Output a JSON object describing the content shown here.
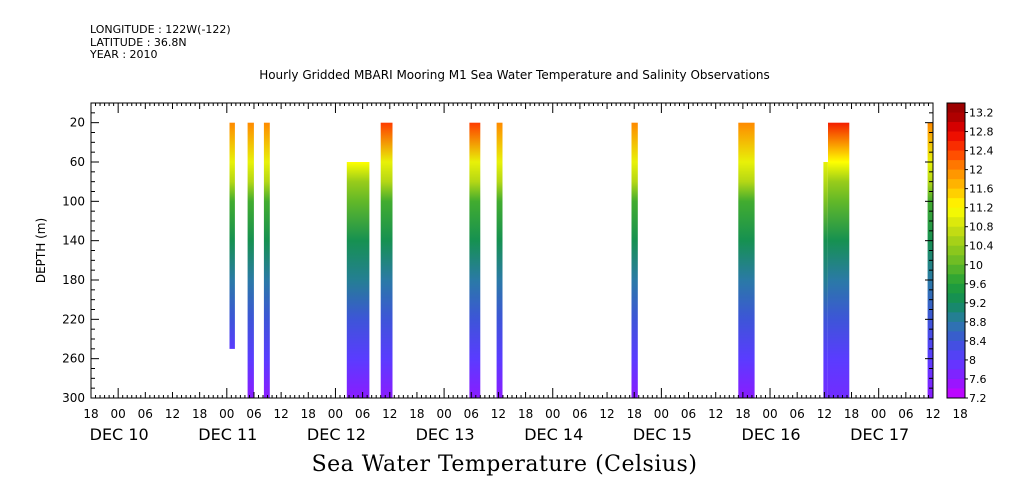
{
  "header": {
    "longitude": "LONGITUDE : 122W(-122)",
    "latitude": "LATITUDE : 36.8N",
    "year": "YEAR : 2010",
    "title": "Hourly Gridded MBARI Mooring M1 Sea Water Temperature and Salinity Observations"
  },
  "variable_title": "Sea Water Temperature (Celsius)",
  "chart_data": {
    "type": "heatmap",
    "title": "Hourly Gridded MBARI Mooring M1 Sea Water Temperature and Salinity Observations",
    "xlabel": "",
    "ylabel": "DEPTH (m)",
    "x_range_hours_from_dec10_00": [
      -6,
      180
    ],
    "y_range_depth_m": [
      0,
      300
    ],
    "y_reversed": true,
    "y_ticks": [
      20,
      60,
      100,
      140,
      180,
      220,
      260,
      300
    ],
    "x_hour_ticks": [
      "18",
      "00",
      "06",
      "12",
      "18",
      "00",
      "06",
      "12",
      "18",
      "00",
      "06",
      "12",
      "18",
      "00",
      "06",
      "12",
      "18",
      "00",
      "06",
      "12",
      "18",
      "00",
      "06",
      "12",
      "18",
      "00",
      "06",
      "12",
      "18",
      "00",
      "06",
      "12",
      "18"
    ],
    "x_date_labels": [
      "DEC 10",
      "DEC 11",
      "DEC 12",
      "DEC 13",
      "DEC 14",
      "DEC 15",
      "DEC 16",
      "DEC 17"
    ],
    "colorbar_levels": [
      "13.2",
      "12.8",
      "12.4",
      "12",
      "11.6",
      "11.2",
      "10.8",
      "10.4",
      "10",
      "9.6",
      "9.2",
      "8.8",
      "8.4",
      "8",
      "7.6",
      "7.2"
    ],
    "colorbar_range": [
      7.2,
      13.4
    ],
    "profiles": [
      {
        "time_start_h": 24.6,
        "time_end_h": 25.8,
        "depth_top": 20,
        "depth_bottom": 250,
        "temps": [
          [
            20,
            12.0
          ],
          [
            60,
            11.0
          ],
          [
            80,
            10.6
          ],
          [
            100,
            9.8
          ],
          [
            140,
            9.3
          ],
          [
            180,
            8.8
          ],
          [
            220,
            8.4
          ],
          [
            250,
            8.0
          ]
        ]
      },
      {
        "time_start_h": 28.6,
        "time_end_h": 30.0,
        "depth_top": 20,
        "depth_bottom": 300,
        "temps": [
          [
            20,
            12.0
          ],
          [
            60,
            11.0
          ],
          [
            80,
            10.6
          ],
          [
            100,
            9.8
          ],
          [
            140,
            9.3
          ],
          [
            180,
            8.8
          ],
          [
            220,
            8.4
          ],
          [
            260,
            8.0
          ],
          [
            300,
            7.6
          ]
        ]
      },
      {
        "time_start_h": 32.2,
        "time_end_h": 33.5,
        "depth_top": 20,
        "depth_bottom": 300,
        "temps": [
          [
            20,
            12.0
          ],
          [
            60,
            11.0
          ],
          [
            80,
            10.6
          ],
          [
            100,
            9.8
          ],
          [
            140,
            9.3
          ],
          [
            180,
            8.8
          ],
          [
            220,
            8.4
          ],
          [
            260,
            8.0
          ],
          [
            300,
            7.6
          ]
        ]
      },
      {
        "time_start_h": 50.5,
        "time_end_h": 55.5,
        "depth_top": 60,
        "depth_bottom": 300,
        "temps": [
          [
            60,
            11.2
          ],
          [
            80,
            10.4
          ],
          [
            100,
            10.0
          ],
          [
            140,
            9.3
          ],
          [
            180,
            8.9
          ],
          [
            220,
            8.4
          ],
          [
            260,
            8.0
          ],
          [
            300,
            7.6
          ]
        ]
      },
      {
        "time_start_h": 58.0,
        "time_end_h": 60.6,
        "depth_top": 20,
        "depth_bottom": 300,
        "temps": [
          [
            20,
            12.4
          ],
          [
            60,
            11.0
          ],
          [
            80,
            10.6
          ],
          [
            100,
            9.8
          ],
          [
            140,
            9.3
          ],
          [
            180,
            8.8
          ],
          [
            220,
            8.4
          ],
          [
            260,
            8.0
          ],
          [
            300,
            7.6
          ]
        ]
      },
      {
        "time_start_h": 77.6,
        "time_end_h": 80.0,
        "depth_top": 20,
        "depth_bottom": 300,
        "temps": [
          [
            20,
            12.4
          ],
          [
            60,
            11.0
          ],
          [
            80,
            10.6
          ],
          [
            100,
            9.8
          ],
          [
            140,
            9.3
          ],
          [
            180,
            8.8
          ],
          [
            220,
            8.4
          ],
          [
            260,
            8.0
          ],
          [
            300,
            7.6
          ]
        ]
      },
      {
        "time_start_h": 83.6,
        "time_end_h": 84.9,
        "depth_top": 20,
        "depth_bottom": 300,
        "temps": [
          [
            20,
            12.0
          ],
          [
            60,
            11.0
          ],
          [
            80,
            10.6
          ],
          [
            100,
            9.8
          ],
          [
            140,
            9.3
          ],
          [
            180,
            8.8
          ],
          [
            220,
            8.4
          ],
          [
            260,
            8.0
          ],
          [
            300,
            7.6
          ]
        ]
      },
      {
        "time_start_h": 113.4,
        "time_end_h": 114.8,
        "depth_top": 20,
        "depth_bottom": 300,
        "temps": [
          [
            20,
            12.0
          ],
          [
            60,
            11.0
          ],
          [
            80,
            10.6
          ],
          [
            100,
            9.8
          ],
          [
            140,
            9.3
          ],
          [
            180,
            8.8
          ],
          [
            220,
            8.4
          ],
          [
            260,
            8.0
          ],
          [
            300,
            7.6
          ]
        ]
      },
      {
        "time_start_h": 137.0,
        "time_end_h": 140.6,
        "depth_top": 20,
        "depth_bottom": 300,
        "temps": [
          [
            20,
            12.0
          ],
          [
            60,
            11.0
          ],
          [
            80,
            10.6
          ],
          [
            100,
            9.8
          ],
          [
            140,
            9.3
          ],
          [
            180,
            8.8
          ],
          [
            220,
            8.4
          ],
          [
            260,
            8.0
          ],
          [
            300,
            7.6
          ]
        ]
      },
      {
        "time_start_h": 155.8,
        "time_end_h": 156.8,
        "depth_top": 60,
        "depth_bottom": 300,
        "temps": [
          [
            60,
            11.0
          ],
          [
            100,
            10.2
          ],
          [
            140,
            9.3
          ],
          [
            180,
            8.9
          ],
          [
            220,
            8.4
          ],
          [
            260,
            8.0
          ],
          [
            300,
            7.8
          ]
        ]
      },
      {
        "time_start_h": 156.8,
        "time_end_h": 161.5,
        "depth_top": 20,
        "depth_bottom": 300,
        "temps": [
          [
            20,
            12.6
          ],
          [
            60,
            11.2
          ],
          [
            80,
            10.4
          ],
          [
            100,
            10.0
          ],
          [
            140,
            9.3
          ],
          [
            180,
            8.8
          ],
          [
            220,
            8.4
          ],
          [
            260,
            8.0
          ],
          [
            300,
            7.8
          ]
        ]
      },
      {
        "time_start_h": 178.8,
        "time_end_h": 180.0,
        "depth_top": 20,
        "depth_bottom": 300,
        "temps": [
          [
            20,
            12.0
          ],
          [
            60,
            11.0
          ],
          [
            80,
            10.6
          ],
          [
            100,
            9.8
          ],
          [
            140,
            9.3
          ],
          [
            180,
            8.8
          ],
          [
            220,
            8.4
          ],
          [
            260,
            8.0
          ],
          [
            300,
            7.6
          ]
        ]
      }
    ]
  }
}
